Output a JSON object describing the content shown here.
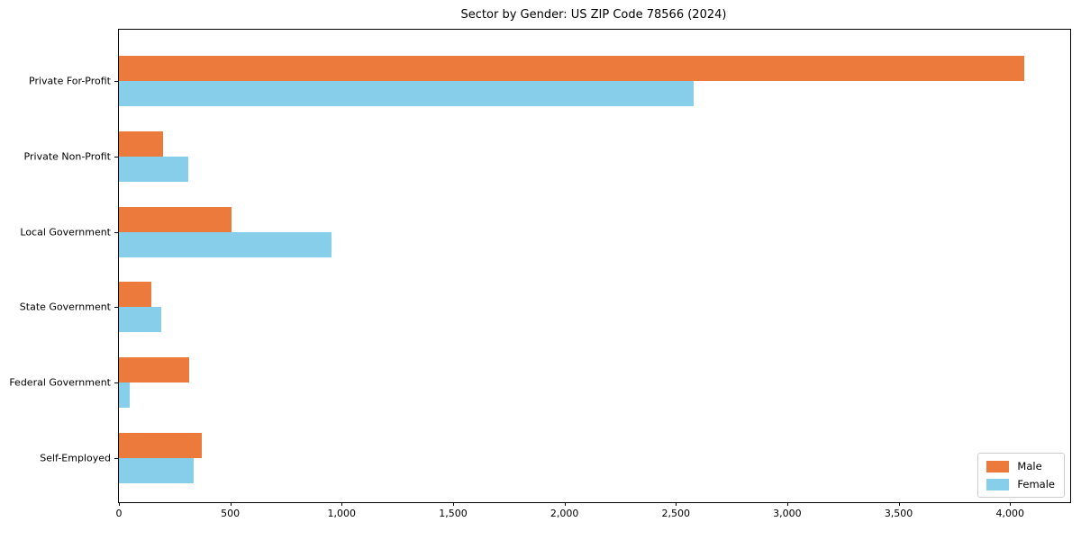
{
  "figure": {
    "title": "Sector by Gender: US ZIP Code 78566 (2024)"
  },
  "colors": {
    "male_bar": "#EC7A3C",
    "female_bar": "#87CEEB",
    "spine": "#000000",
    "background": "#FFFFFF",
    "legend_border": "#CCCCCC",
    "text": "#000000"
  },
  "chart_data": {
    "type": "bar",
    "orientation": "horizontal",
    "title": "Sector by Gender: US ZIP Code 78566 (2024)",
    "categories": [
      "Private For-Profit",
      "Private Non-Profit",
      "Local Government",
      "State Government",
      "Federal Government",
      "Self-Employed"
    ],
    "series": [
      {
        "name": "Male",
        "color": "#EC7A3C",
        "values": [
          4065,
          200,
          505,
          145,
          315,
          370
        ]
      },
      {
        "name": "Female",
        "color": "#87CEEB",
        "values": [
          2580,
          310,
          955,
          190,
          50,
          335
        ]
      }
    ],
    "xlabel": "",
    "ylabel": "",
    "xlim": [
      0,
      4270
    ],
    "xticks": [
      0,
      500,
      1000,
      1500,
      2000,
      2500,
      3000,
      3500,
      4000
    ],
    "xtick_labels": [
      "0",
      "500",
      "1,000",
      "1,500",
      "2,000",
      "2,500",
      "3,000",
      "3,500",
      "4,000"
    ],
    "grid": false,
    "legend": {
      "position": "lower-right",
      "entries": [
        "Male",
        "Female"
      ]
    }
  }
}
